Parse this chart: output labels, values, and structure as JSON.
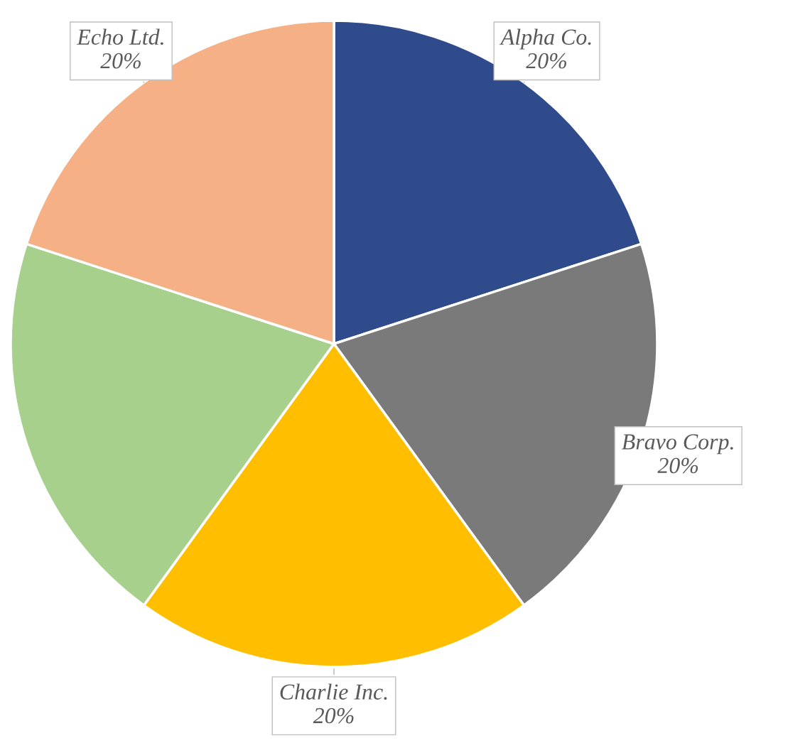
{
  "chart_data": {
    "type": "pie",
    "categories": [
      "Alpha Co.",
      "Bravo Corp.",
      "Charlie Inc.",
      null,
      "Echo Ltd."
    ],
    "values": [
      20,
      20,
      20,
      20,
      20
    ],
    "value_labels": [
      "20%",
      "20%",
      "20%",
      null,
      "20%"
    ],
    "colors": [
      "#2f4b8c",
      "#7a7a7a",
      "#ffbf00",
      "#a6d08c",
      "#f5b086"
    ],
    "legend": false
  }
}
